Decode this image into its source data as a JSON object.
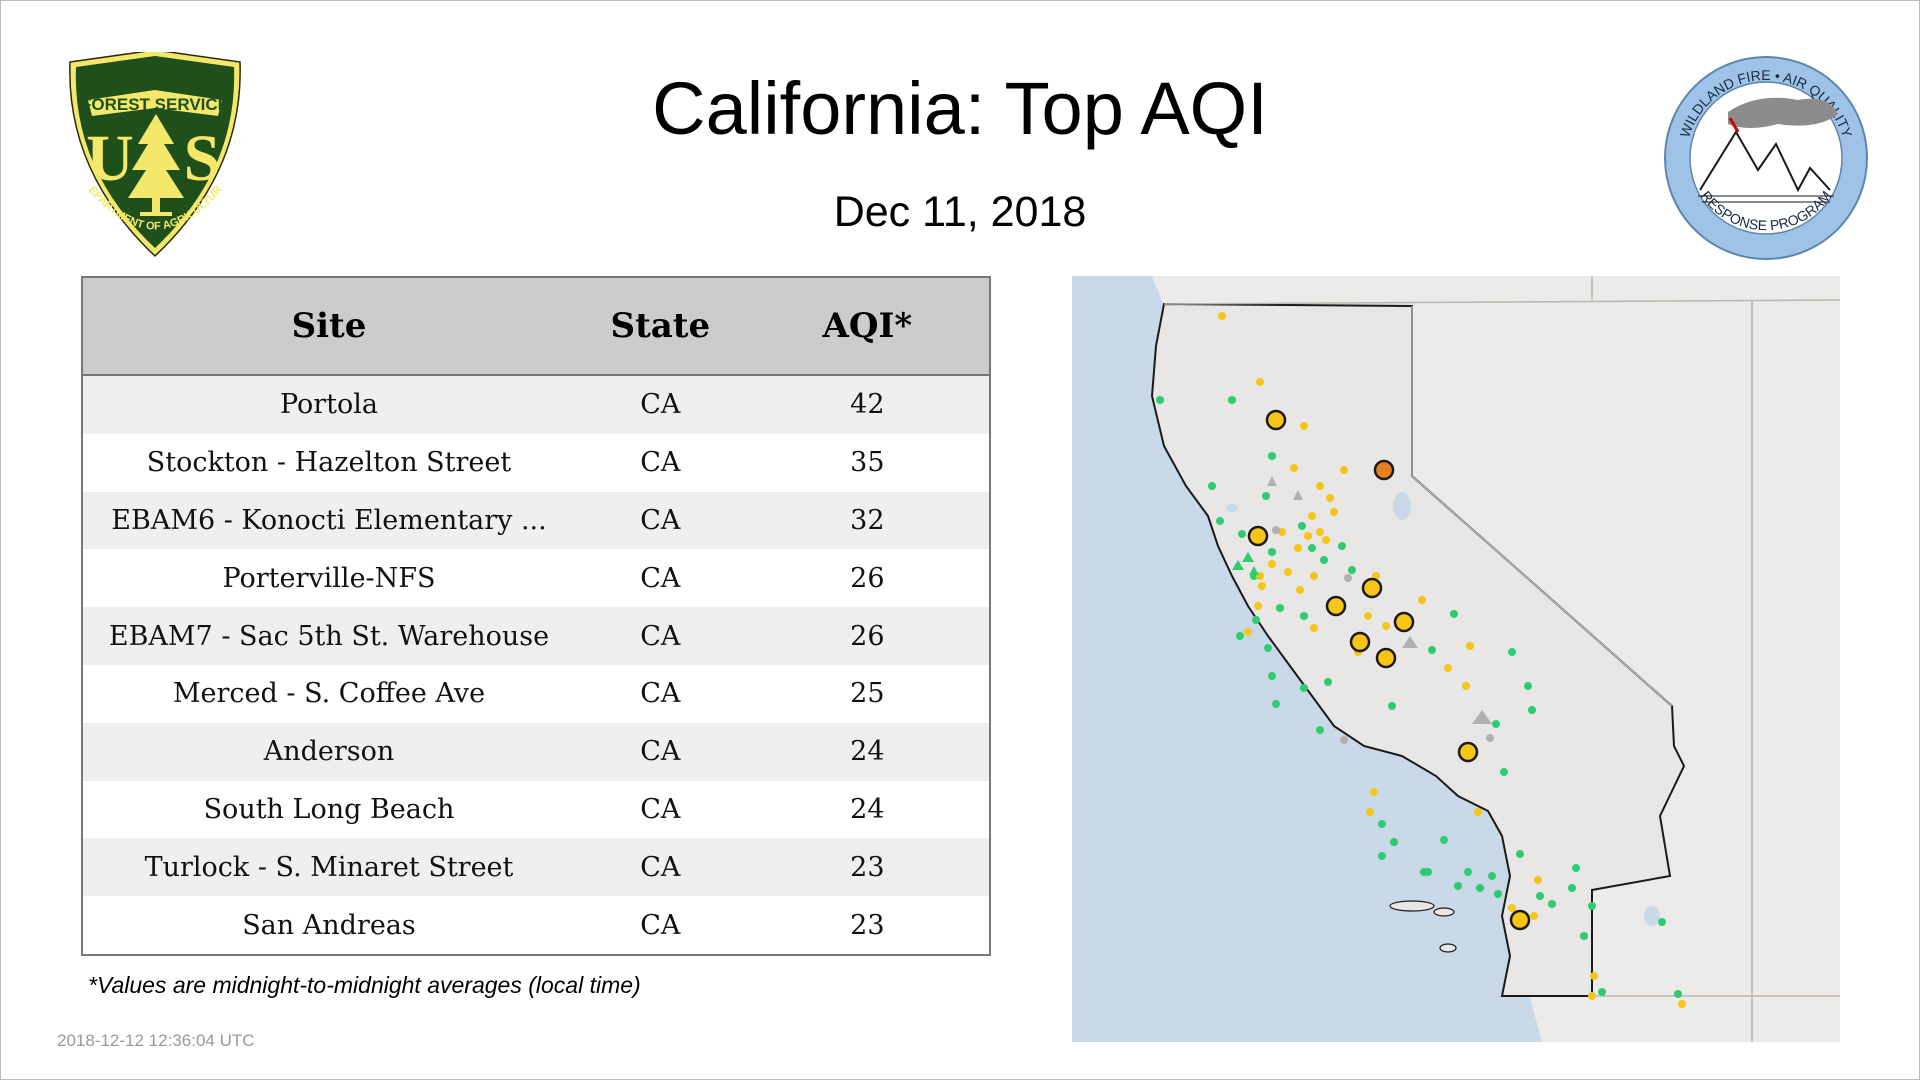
{
  "header": {
    "title": "California: Top AQI",
    "date": "Dec 11, 2018"
  },
  "logos": {
    "forest_service": {
      "top_text": "FOREST SERVICE",
      "initials_left": "U",
      "initials_right": "S",
      "bottom_text": "DEPARTMENT OF AGRICULTURE"
    },
    "wildland": {
      "top_text": "WILDLAND FIRE • AIR QUALITY",
      "bottom_text": "RESPONSE PROGRAM"
    }
  },
  "table": {
    "columns": [
      "Site",
      "State",
      "AQI*"
    ],
    "rows": [
      {
        "site": "Portola",
        "state": "CA",
        "aqi": "42"
      },
      {
        "site": "Stockton - Hazelton Street",
        "state": "CA",
        "aqi": "35"
      },
      {
        "site": "EBAM6 - Konocti Elementary ...",
        "state": "CA",
        "aqi": "32"
      },
      {
        "site": "Porterville-NFS",
        "state": "CA",
        "aqi": "26"
      },
      {
        "site": "EBAM7 - Sac 5th St. Warehouse",
        "state": "CA",
        "aqi": "26"
      },
      {
        "site": "Merced - S. Coffee Ave",
        "state": "CA",
        "aqi": "25"
      },
      {
        "site": "Anderson",
        "state": "CA",
        "aqi": "24"
      },
      {
        "site": "South Long Beach",
        "state": "CA",
        "aqi": "24"
      },
      {
        "site": "Turlock - S. Minaret Street",
        "state": "CA",
        "aqi": "23"
      },
      {
        "site": "San Andreas",
        "state": "CA",
        "aqi": "23"
      }
    ]
  },
  "footnote": "*Values are midnight-to-midnight averages (local time)",
  "timestamp": "2018-12-12 12:36:04 UTC",
  "colors": {
    "good": "#2ecc71",
    "moderate": "#f5c518",
    "usg": "#e67e22",
    "no_data": "#b0b0b0",
    "ocean": "#c9d9e8",
    "land": "#ecebea",
    "fs_green": "#1f4f1a",
    "fs_gold": "#f3e86a",
    "wfaq_blue": "#9ec3e6"
  },
  "map": {
    "icons": [
      "good-monitor-dot",
      "moderate-monitor-dot",
      "usg-monitor-dot",
      "top-site-circle",
      "temporary-monitor-triangle"
    ]
  }
}
